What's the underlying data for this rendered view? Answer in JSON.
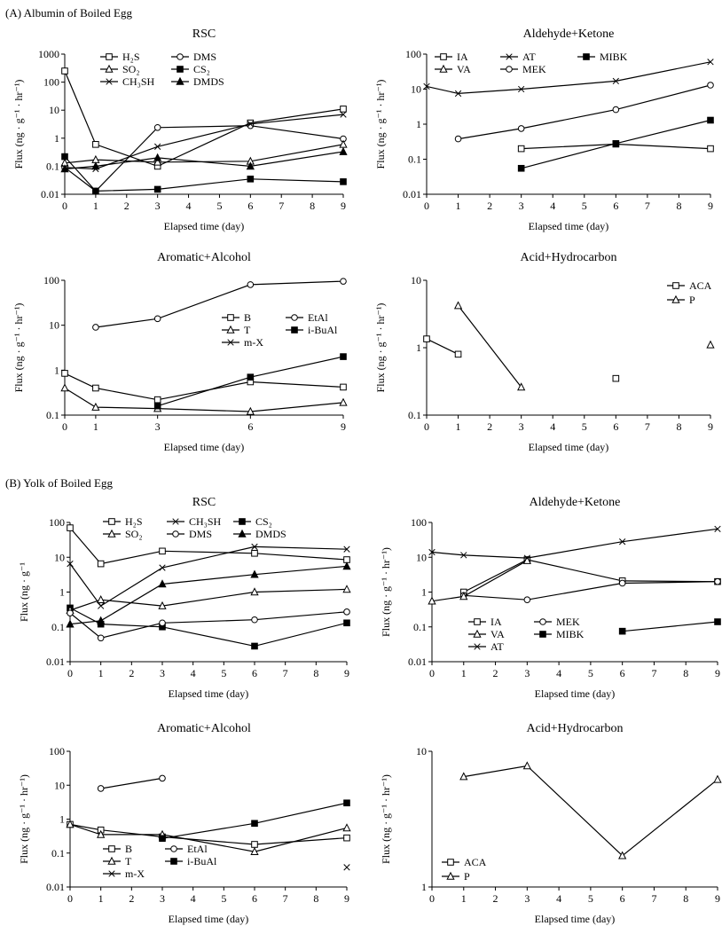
{
  "sections": {
    "a": "(A) Albumin of Boiled Egg",
    "b": "(B) Yolk of Boiled Egg"
  },
  "chart_data": [
    {
      "id": "A1",
      "type": "line",
      "yscale": "log",
      "title": "RSC",
      "xlabel": "Elapsed time (day)",
      "ylabel": "Flux (ng · g⁻¹ · hr⁻¹)",
      "xlim": [
        0,
        9
      ],
      "ylim": [
        0.01,
        1000
      ],
      "xticks": [
        0,
        1,
        2,
        3,
        4,
        5,
        6,
        7,
        8,
        9
      ],
      "yticks": [
        0.01,
        0.1,
        1,
        10,
        100,
        1000
      ],
      "ytick_labels": [
        "0.01",
        "0.1",
        "1",
        "10",
        "100",
        "1000"
      ],
      "legend_columns": 2,
      "series": [
        {
          "name": "H₂S",
          "marker": "square-open",
          "x": [
            0,
            1,
            3,
            6,
            9
          ],
          "y": [
            250,
            0.6,
            0.1,
            3.5,
            11
          ]
        },
        {
          "name": "DMS",
          "marker": "circle-open",
          "x": [
            0,
            1,
            3,
            6,
            9
          ],
          "y": [
            0.09,
            0.013,
            2.4,
            2.8,
            0.95
          ]
        },
        {
          "name": "SO₂",
          "marker": "triangle-open",
          "x": [
            0,
            1,
            3,
            6,
            9
          ],
          "y": [
            0.13,
            0.17,
            0.14,
            0.15,
            0.6
          ]
        },
        {
          "name": "CS₂",
          "marker": "square-filled",
          "x": [
            0,
            1,
            3,
            6,
            9
          ],
          "y": [
            0.22,
            0.013,
            0.015,
            0.035,
            0.028
          ]
        },
        {
          "name": "CH₃SH",
          "marker": "x",
          "x": [
            0,
            1,
            3,
            6,
            9
          ],
          "y": [
            0.09,
            0.08,
            0.5,
            3.2,
            7
          ]
        },
        {
          "name": "DMDS",
          "marker": "triangle-filled",
          "x": [
            0,
            1,
            3,
            6,
            9
          ],
          "y": [
            0.08,
            0.1,
            0.2,
            0.1,
            0.33
          ]
        }
      ]
    },
    {
      "id": "A2",
      "type": "line",
      "yscale": "log",
      "title": "Aldehyde+Ketone",
      "xlabel": "Elapsed time (day)",
      "ylabel": "Flux (ng · g⁻¹ · hr⁻¹)",
      "xlim": [
        0,
        9
      ],
      "ylim": [
        0.01,
        100
      ],
      "xticks": [
        0,
        1,
        2,
        3,
        4,
        5,
        6,
        7,
        8,
        9
      ],
      "yticks": [
        0.01,
        0.1,
        1,
        10,
        100
      ],
      "ytick_labels": [
        "0.01",
        "0.1",
        "1",
        "10",
        "100"
      ],
      "legend_columns": 3,
      "series": [
        {
          "name": "IA",
          "marker": "square-open",
          "x": [
            3,
            6,
            9
          ],
          "y": [
            0.2,
            0.27,
            0.2
          ]
        },
        {
          "name": "AT",
          "marker": "x",
          "x": [
            0,
            1,
            3,
            6,
            9
          ],
          "y": [
            12,
            7.5,
            10,
            17,
            60
          ]
        },
        {
          "name": "MIBK",
          "marker": "square-filled",
          "x": [
            3,
            6,
            9
          ],
          "y": [
            0.055,
            0.28,
            1.3
          ]
        },
        {
          "name": "VA",
          "marker": "triangle-open",
          "x": [],
          "y": []
        },
        {
          "name": "MEK",
          "marker": "circle-open",
          "x": [
            1,
            3,
            6,
            9
          ],
          "y": [
            0.38,
            0.75,
            2.6,
            13
          ]
        }
      ]
    },
    {
      "id": "A3",
      "type": "line",
      "yscale": "log",
      "title": "Aromatic+Alcohol",
      "xlabel": "Elapsed time (day)",
      "ylabel": "Flux (ng · g⁻¹ · hr⁻¹)",
      "xlim": [
        0,
        9
      ],
      "ylim": [
        0.1,
        100
      ],
      "xticks": [
        0,
        1,
        3,
        6,
        9
      ],
      "yticks": [
        0.1,
        1,
        10,
        100
      ],
      "ytick_labels": [
        "0.1",
        "1",
        "10",
        "100"
      ],
      "legend_columns": 2,
      "series": [
        {
          "name": "B",
          "marker": "square-open",
          "x": [
            0,
            1,
            3,
            6,
            9
          ],
          "y": [
            0.85,
            0.4,
            0.22,
            0.55,
            0.42
          ]
        },
        {
          "name": "EtAl",
          "marker": "circle-open",
          "x": [
            1,
            3,
            6,
            9
          ],
          "y": [
            9,
            14,
            80,
            95
          ]
        },
        {
          "name": "T",
          "marker": "triangle-open",
          "x": [
            0,
            1,
            3,
            6,
            9
          ],
          "y": [
            0.4,
            0.15,
            0.14,
            0.12,
            0.19
          ]
        },
        {
          "name": "i-BuAl",
          "marker": "square-filled",
          "x": [
            3,
            6,
            9
          ],
          "y": [
            0.16,
            0.7,
            2
          ]
        },
        {
          "name": "m-X",
          "marker": "x",
          "x": [],
          "y": []
        }
      ]
    },
    {
      "id": "A4",
      "type": "line",
      "yscale": "log",
      "title": "Acid+Hydrocarbon",
      "xlabel": "Elapsed time (day)",
      "ylabel": "Flux (ng · g⁻¹ · hr⁻¹)",
      "xlim": [
        0,
        9
      ],
      "ylim": [
        0.1,
        10
      ],
      "xticks": [
        0,
        1,
        2,
        3,
        4,
        5,
        6,
        7,
        8,
        9
      ],
      "yticks": [
        0.1,
        1,
        10
      ],
      "ytick_labels": [
        "0.1",
        "1",
        "10"
      ],
      "legend_columns": 1,
      "series": [
        {
          "name": "ACA",
          "marker": "square-open",
          "segments": [
            {
              "x": [
                0,
                1
              ],
              "y": [
                1.35,
                0.8
              ]
            },
            {
              "x": [
                6
              ],
              "y": [
                0.35
              ]
            }
          ]
        },
        {
          "name": "P",
          "marker": "triangle-open",
          "segments": [
            {
              "x": [
                1,
                3
              ],
              "y": [
                4.2,
                0.26
              ]
            },
            {
              "x": [
                9
              ],
              "y": [
                1.1
              ]
            }
          ]
        }
      ]
    },
    {
      "id": "B1",
      "type": "line",
      "yscale": "log",
      "title": "RSC",
      "xlabel": "Elapsed time (day)",
      "ylabel": "Flux (ng · g⁻¹",
      "xlim": [
        0,
        9
      ],
      "ylim": [
        0.01,
        100
      ],
      "xticks": [
        0,
        1,
        2,
        3,
        4,
        5,
        6,
        7,
        8,
        9
      ],
      "yticks": [
        0.01,
        0.1,
        1,
        10,
        100
      ],
      "ytick_labels": [
        "0.01",
        "0.1",
        "1",
        "10",
        "100"
      ],
      "legend_columns": 3,
      "series": [
        {
          "name": "H₂S",
          "marker": "square-open",
          "x": [
            0,
            1,
            3,
            6,
            9
          ],
          "y": [
            70,
            6.5,
            15,
            13,
            8.5
          ]
        },
        {
          "name": "CH₃SH",
          "marker": "x",
          "x": [
            0,
            1,
            3,
            6,
            9
          ],
          "y": [
            6.5,
            0.4,
            5,
            20,
            17
          ]
        },
        {
          "name": "CS₂",
          "marker": "square-filled",
          "x": [
            0,
            1,
            3,
            6,
            9
          ],
          "y": [
            0.35,
            0.12,
            0.1,
            0.028,
            0.13
          ]
        },
        {
          "name": "SO₂",
          "marker": "triangle-open",
          "x": [
            0,
            1,
            3,
            6,
            9
          ],
          "y": [
            0.3,
            0.6,
            0.4,
            1,
            1.2
          ]
        },
        {
          "name": "DMS",
          "marker": "circle-open",
          "x": [
            0,
            1,
            3,
            6,
            9
          ],
          "y": [
            0.25,
            0.048,
            0.13,
            0.16,
            0.27
          ]
        },
        {
          "name": "DMDS",
          "marker": "triangle-filled",
          "x": [
            0,
            1,
            3,
            6,
            9
          ],
          "y": [
            0.12,
            0.15,
            1.7,
            3.2,
            5.5
          ]
        }
      ]
    },
    {
      "id": "B2",
      "type": "line",
      "yscale": "log",
      "title": "Aldehyde+Ketone",
      "xlabel": "Elapsed time (day)",
      "ylabel": "Flux (ng · g⁻¹ · hr⁻¹)",
      "xlim": [
        0,
        9
      ],
      "ylim": [
        0.01,
        100
      ],
      "xticks": [
        0,
        1,
        2,
        3,
        4,
        5,
        6,
        7,
        8,
        9
      ],
      "yticks": [
        0.01,
        0.1,
        1,
        10,
        100
      ],
      "ytick_labels": [
        "0.01",
        "0.1",
        "1",
        "10",
        "100"
      ],
      "legend_columns": 2,
      "series": [
        {
          "name": "IA",
          "marker": "square-open",
          "x": [
            1,
            3,
            6,
            9
          ],
          "y": [
            1,
            8.5,
            2.1,
            2
          ]
        },
        {
          "name": "MEK",
          "marker": "circle-open",
          "x": [
            1,
            3,
            6,
            9
          ],
          "y": [
            0.8,
            0.6,
            1.8,
            2
          ]
        },
        {
          "name": "VA",
          "marker": "triangle-open",
          "x": [
            0,
            1,
            3
          ],
          "y": [
            0.55,
            0.75,
            8
          ]
        },
        {
          "name": "MIBK",
          "marker": "square-filled",
          "x": [
            6,
            9
          ],
          "y": [
            0.075,
            0.14
          ]
        },
        {
          "name": "AT",
          "marker": "x",
          "x": [
            0,
            1,
            3,
            6,
            9
          ],
          "y": [
            14,
            11.5,
            9.5,
            28,
            65
          ]
        }
      ]
    },
    {
      "id": "B3",
      "type": "line",
      "yscale": "log",
      "title": "Aromatic+Alcohol",
      "xlabel": "Elapsed time (day)",
      "ylabel": "Flux (ng · g⁻¹ · hr⁻¹)",
      "xlim": [
        0,
        9
      ],
      "ylim": [
        0.01,
        100
      ],
      "xticks": [
        0,
        1,
        2,
        3,
        4,
        5,
        6,
        7,
        8,
        9
      ],
      "yticks": [
        0.01,
        0.1,
        1,
        10,
        100
      ],
      "ytick_labels": [
        "0.01",
        "0.1",
        "1",
        "10",
        "100"
      ],
      "legend_columns": 2,
      "series": [
        {
          "name": "B",
          "marker": "square-open",
          "x": [
            0,
            1,
            3,
            6,
            9
          ],
          "y": [
            0.7,
            0.48,
            0.3,
            0.18,
            0.28
          ]
        },
        {
          "name": "EtAl",
          "marker": "circle-open",
          "x": [
            1,
            3
          ],
          "y": [
            8,
            16
          ]
        },
        {
          "name": "T",
          "marker": "triangle-open",
          "x": [
            0,
            1,
            3,
            6,
            9
          ],
          "y": [
            0.7,
            0.35,
            0.35,
            0.11,
            0.55
          ]
        },
        {
          "name": "i-BuAl",
          "marker": "square-filled",
          "x": [
            3,
            6,
            9
          ],
          "y": [
            0.27,
            0.75,
            3
          ]
        },
        {
          "name": "m-X",
          "marker": "x",
          "x": [
            9
          ],
          "y": [
            0.038
          ]
        }
      ]
    },
    {
      "id": "B4",
      "type": "line",
      "yscale": "log",
      "title": "Acid+Hydrocarbon",
      "xlabel": "Elapsed time (day)",
      "ylabel": "Flux (ng · g⁻¹ · hr⁻¹)",
      "xlim": [
        0,
        9
      ],
      "ylim": [
        1,
        10
      ],
      "xticks": [
        0,
        1,
        2,
        3,
        4,
        5,
        6,
        7,
        8,
        9
      ],
      "yticks": [
        1,
        10
      ],
      "ytick_labels": [
        "1",
        "10"
      ],
      "legend_columns": 1,
      "series": [
        {
          "name": "ACA",
          "marker": "square-open",
          "x": [],
          "y": []
        },
        {
          "name": "P",
          "marker": "triangle-open",
          "x": [
            1,
            3,
            6,
            9
          ],
          "y": [
            6.5,
            7.8,
            1.7,
            6.2
          ]
        }
      ]
    }
  ]
}
